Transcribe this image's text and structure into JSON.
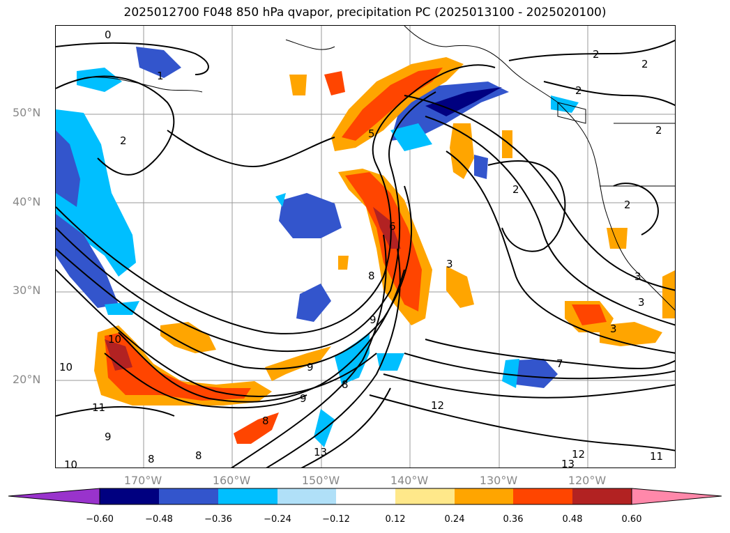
{
  "title": "2025012700 F048 850 hPa qvapor, precipitation PC (2025013100 - 2025020100)",
  "lat_labels": [
    "50°N",
    "40°N",
    "30°N",
    "20°N"
  ],
  "lon_labels": [
    "170°W",
    "160°W",
    "150°W",
    "140°W",
    "130°W",
    "120°W"
  ],
  "colorbar": {
    "colors": [
      "#9933cc",
      "#000080",
      "#3355cc",
      "#00bfff",
      "#b0e0f8",
      "#ffffff",
      "#ffe88a",
      "#ffa500",
      "#ff4500",
      "#b22222",
      "#ff88aa"
    ],
    "ticks": [
      "−0.60",
      "−0.48",
      "−0.36",
      "−0.24",
      "−0.12",
      "0.12",
      "0.24",
      "0.36",
      "0.48",
      "0.60"
    ]
  },
  "contour_labels": [
    "0",
    "1",
    "2",
    "2",
    "2",
    "2",
    "2",
    "2",
    "2",
    "3",
    "3",
    "3",
    "3",
    "5",
    "6",
    "7",
    "8",
    "8",
    "8",
    "8",
    "8",
    "9",
    "9",
    "9",
    "9",
    "10",
    "10",
    "10",
    "11",
    "11",
    "12",
    "12",
    "13",
    "13"
  ]
}
